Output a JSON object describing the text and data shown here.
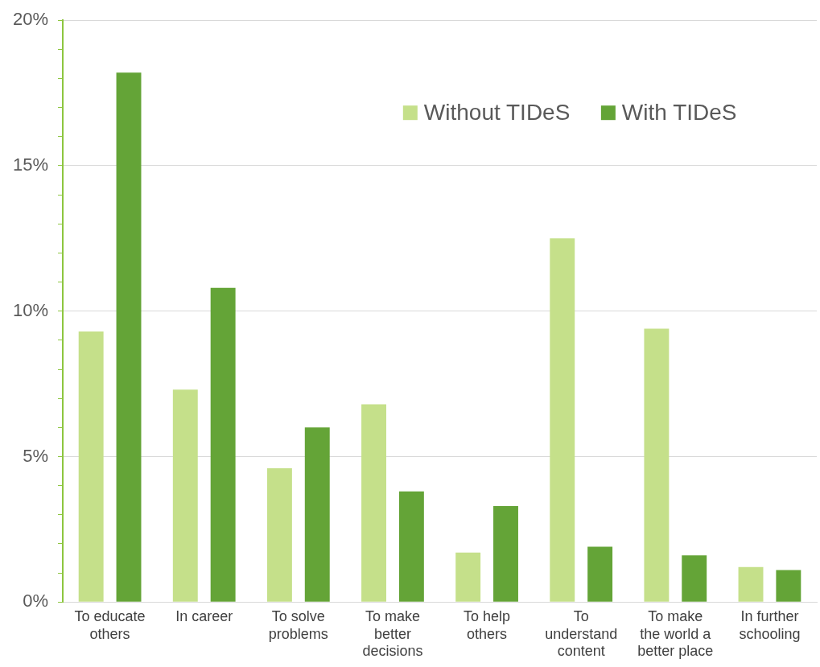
{
  "chart_data": {
    "type": "bar",
    "categories": [
      "To educate others",
      "In career",
      "To solve problems",
      "To make better decisions",
      "To help others",
      "To understand content",
      "To make the world a better place",
      "In further schooling"
    ],
    "series": [
      {
        "name": "Without TIDeS",
        "color": "#c5e08a",
        "values": [
          9.3,
          7.3,
          4.6,
          6.8,
          1.7,
          12.5,
          9.4,
          1.2
        ]
      },
      {
        "name": "With TIDeS",
        "color": "#64a437",
        "values": [
          18.2,
          10.8,
          6.0,
          3.8,
          3.3,
          1.9,
          1.6,
          1.1
        ]
      }
    ],
    "ylim": [
      0,
      20
    ],
    "yticks": [
      {
        "value": 0,
        "label": "0%"
      },
      {
        "value": 1,
        "label": null
      },
      {
        "value": 2,
        "label": null
      },
      {
        "value": 3,
        "label": null
      },
      {
        "value": 4,
        "label": null
      },
      {
        "value": 5,
        "label": "5%"
      },
      {
        "value": 6,
        "label": null
      },
      {
        "value": 7,
        "label": null
      },
      {
        "value": 8,
        "label": null
      },
      {
        "value": 9,
        "label": null
      },
      {
        "value": 10,
        "label": "10%"
      },
      {
        "value": 11,
        "label": null
      },
      {
        "value": 12,
        "label": null
      },
      {
        "value": 13,
        "label": null
      },
      {
        "value": 14,
        "label": null
      },
      {
        "value": 15,
        "label": "15%"
      },
      {
        "value": 16,
        "label": null
      },
      {
        "value": 17,
        "label": null
      },
      {
        "value": 18,
        "label": null
      },
      {
        "value": 19,
        "label": null
      },
      {
        "value": 20,
        "label": "20%"
      }
    ],
    "grid": "y",
    "legend": "top right"
  }
}
